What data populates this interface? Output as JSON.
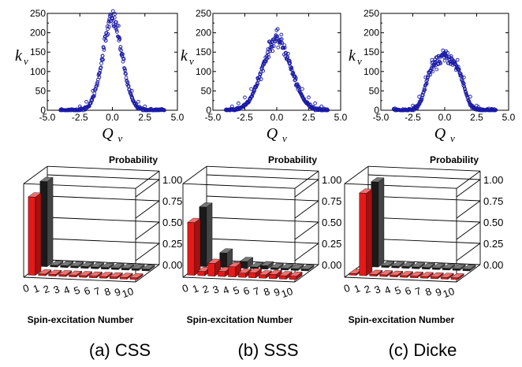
{
  "chart_data": [
    {
      "type": "scatter",
      "panel": "a",
      "xlabel": "Q",
      "xlabel_sub": "ν",
      "ylabel": "k",
      "ylabel_sub": "ν",
      "xlim": [
        -5.0,
        5.0
      ],
      "ylim": [
        0,
        250
      ],
      "xticks": [
        "-5.0",
        "-2.5",
        "0.0",
        "2.5",
        "5.0"
      ],
      "yticks": [
        "0",
        "50",
        "100",
        "150",
        "200",
        "250"
      ],
      "sigma": 0.75,
      "peak": 235,
      "marker_color": "#1a1aa6",
      "x": [
        -2.5,
        -2.0,
        -1.5,
        -1.0,
        -0.75,
        -0.5,
        -0.25,
        0.0,
        0.25,
        0.5,
        0.75,
        1.0,
        1.5,
        2.0,
        2.5
      ],
      "y": [
        10,
        22,
        50,
        95,
        140,
        180,
        215,
        238,
        215,
        180,
        140,
        95,
        50,
        22,
        10
      ]
    },
    {
      "type": "scatter",
      "panel": "b",
      "xlabel": "Q",
      "xlabel_sub": "ν",
      "ylabel": "k",
      "ylabel_sub": "ν",
      "xlim": [
        -5.0,
        5.0
      ],
      "ylim": [
        0,
        250
      ],
      "xticks": [
        "-5.0",
        "-2.5",
        "0.0",
        "2.5",
        "5.0"
      ],
      "yticks": [
        "0",
        "50",
        "100",
        "150",
        "200",
        "250"
      ],
      "sigma": 1.1,
      "peak": 183,
      "marker_color": "#1a1aa6",
      "x": [
        -3.5,
        -3.0,
        -2.5,
        -2.0,
        -1.5,
        -1.0,
        -0.5,
        0.0,
        0.5,
        1.0,
        1.5,
        2.0,
        2.5,
        3.0,
        3.5
      ],
      "y": [
        10,
        18,
        33,
        55,
        83,
        120,
        162,
        185,
        162,
        120,
        83,
        55,
        33,
        18,
        10
      ]
    },
    {
      "type": "scatter",
      "panel": "c",
      "xlabel": "Q",
      "xlabel_sub": "ν",
      "ylabel": "k",
      "ylabel_sub": "ν",
      "xlim": [
        -5.0,
        5.0
      ],
      "ylim": [
        0,
        250
      ],
      "xticks": [
        "-5.0",
        "-2.5",
        "0.0",
        "2.5",
        "5.0"
      ],
      "yticks": [
        "0",
        "50",
        "100",
        "150",
        "200",
        "250"
      ],
      "plateau": 135,
      "marker_color": "#1a1aa6",
      "x": [
        -2.5,
        -2.0,
        -1.5,
        -1.0,
        -0.5,
        0.0,
        0.5,
        1.0,
        1.5,
        2.0,
        2.5
      ],
      "y": [
        12,
        35,
        85,
        130,
        140,
        128,
        140,
        130,
        85,
        35,
        12
      ]
    },
    {
      "type": "bar3d",
      "panel": "a",
      "zlabel": "Probability",
      "xlabel": "Spin-excitation Number",
      "zticks": [
        "0.00",
        "0.25",
        "0.50",
        "0.75",
        "1.00"
      ],
      "categories": [
        "0",
        "1",
        "2",
        "3",
        "4",
        "5",
        "6",
        "7",
        "8",
        "9",
        "10"
      ],
      "series": [
        {
          "color": "#e41a1a",
          "values": [
            0.92,
            0.02,
            0.02,
            0.02,
            0.02,
            0.02,
            0.02,
            0.02,
            0.02,
            0.02,
            0.02
          ]
        },
        {
          "color": "#1a1a1a",
          "values": [
            1.0,
            0.02,
            0.02,
            0.02,
            0.02,
            0.02,
            0.02,
            0.02,
            0.02,
            0.02,
            0.02
          ]
        }
      ]
    },
    {
      "type": "bar3d",
      "panel": "b",
      "zlabel": "Probability",
      "xlabel": "Spin-excitation Number",
      "zticks": [
        "0.00",
        "0.25",
        "0.50",
        "0.75",
        "1.00"
      ],
      "categories": [
        "0",
        "1",
        "2",
        "3",
        "4",
        "5",
        "6",
        "7",
        "8",
        "9",
        "10"
      ],
      "series": [
        {
          "color": "#e41a1a",
          "values": [
            0.62,
            0.05,
            0.15,
            0.06,
            0.12,
            0.05,
            0.06,
            0.04,
            0.05,
            0.04,
            0.04
          ]
        },
        {
          "color": "#1a1a1a",
          "values": [
            0.7,
            0.03,
            0.17,
            0.03,
            0.08,
            0.02,
            0.04,
            0.02,
            0.02,
            0.02,
            0.02
          ]
        }
      ]
    },
    {
      "type": "bar3d",
      "panel": "c",
      "zlabel": "Probability",
      "xlabel": "Spin-excitation Number",
      "zticks": [
        "0.00",
        "0.25",
        "0.50",
        "0.75",
        "1.00"
      ],
      "categories": [
        "0",
        "1",
        "2",
        "3",
        "4",
        "5",
        "6",
        "7",
        "8",
        "9",
        "10"
      ],
      "series": [
        {
          "color": "#e41a1a",
          "values": [
            0.02,
            0.97,
            0.02,
            0.02,
            0.02,
            0.02,
            0.02,
            0.02,
            0.02,
            0.02,
            0.02
          ]
        },
        {
          "color": "#1a1a1a",
          "values": [
            0.02,
            1.0,
            0.02,
            0.02,
            0.02,
            0.02,
            0.02,
            0.02,
            0.02,
            0.02,
            0.02
          ]
        }
      ]
    }
  ],
  "captions": [
    "(a) CSS",
    "(b) SSS",
    "(c) Dicke"
  ]
}
